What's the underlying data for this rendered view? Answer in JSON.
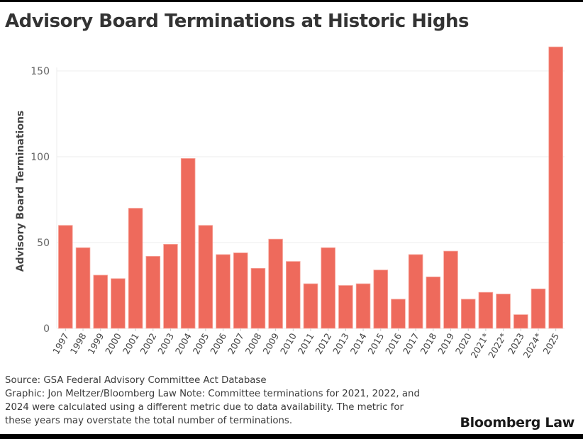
{
  "title": "Advisory Board Terminations at Historic Highs",
  "footer": {
    "source": "Source: GSA Federal Advisory Committee Act Database",
    "note_line1": "Graphic: Jon Meltzer/Bloomberg Law Note: Committee terminations for 2021, 2022, and",
    "note_line2": "2024 were calculated using a different metric due to data availability. The metric for",
    "note_line3": "these years may overstate the total number of terminations.",
    "brand": "Bloomberg Law"
  },
  "colors": {
    "bar": "#ee6a5c",
    "grid": "#ececec",
    "text": "#333333"
  },
  "chart_data": {
    "type": "bar",
    "title": "Advisory Board Terminations at Historic Highs",
    "xlabel": "",
    "ylabel": "Advisory Board Terminations",
    "ylim": [
      0,
      165
    ],
    "yticks": [
      0,
      50,
      100,
      150
    ],
    "grid": true,
    "categories": [
      "1997",
      "1998",
      "1999",
      "2000",
      "2001",
      "2002",
      "2003",
      "2004",
      "2005",
      "2006",
      "2007",
      "2008",
      "2009",
      "2010",
      "2011",
      "2012",
      "2013",
      "2014",
      "2015",
      "2016",
      "2017",
      "2018",
      "2019",
      "2020",
      "2021*",
      "2022*",
      "2023",
      "2024*",
      "2025"
    ],
    "values": [
      60,
      47,
      31,
      29,
      70,
      42,
      49,
      99,
      60,
      43,
      44,
      35,
      52,
      39,
      26,
      47,
      25,
      26,
      34,
      17,
      43,
      30,
      45,
      17,
      21,
      20,
      8,
      23,
      164
    ]
  }
}
